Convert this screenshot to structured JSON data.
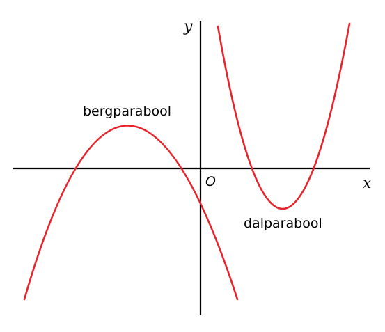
{
  "diagram": {
    "axes": {
      "x_label": "x",
      "y_label": "y",
      "origin_label": "O"
    },
    "curves": [
      {
        "label": "bergparabool",
        "color": "#e8232b"
      },
      {
        "label": "dalparabool",
        "color": "#e8232b"
      }
    ]
  }
}
